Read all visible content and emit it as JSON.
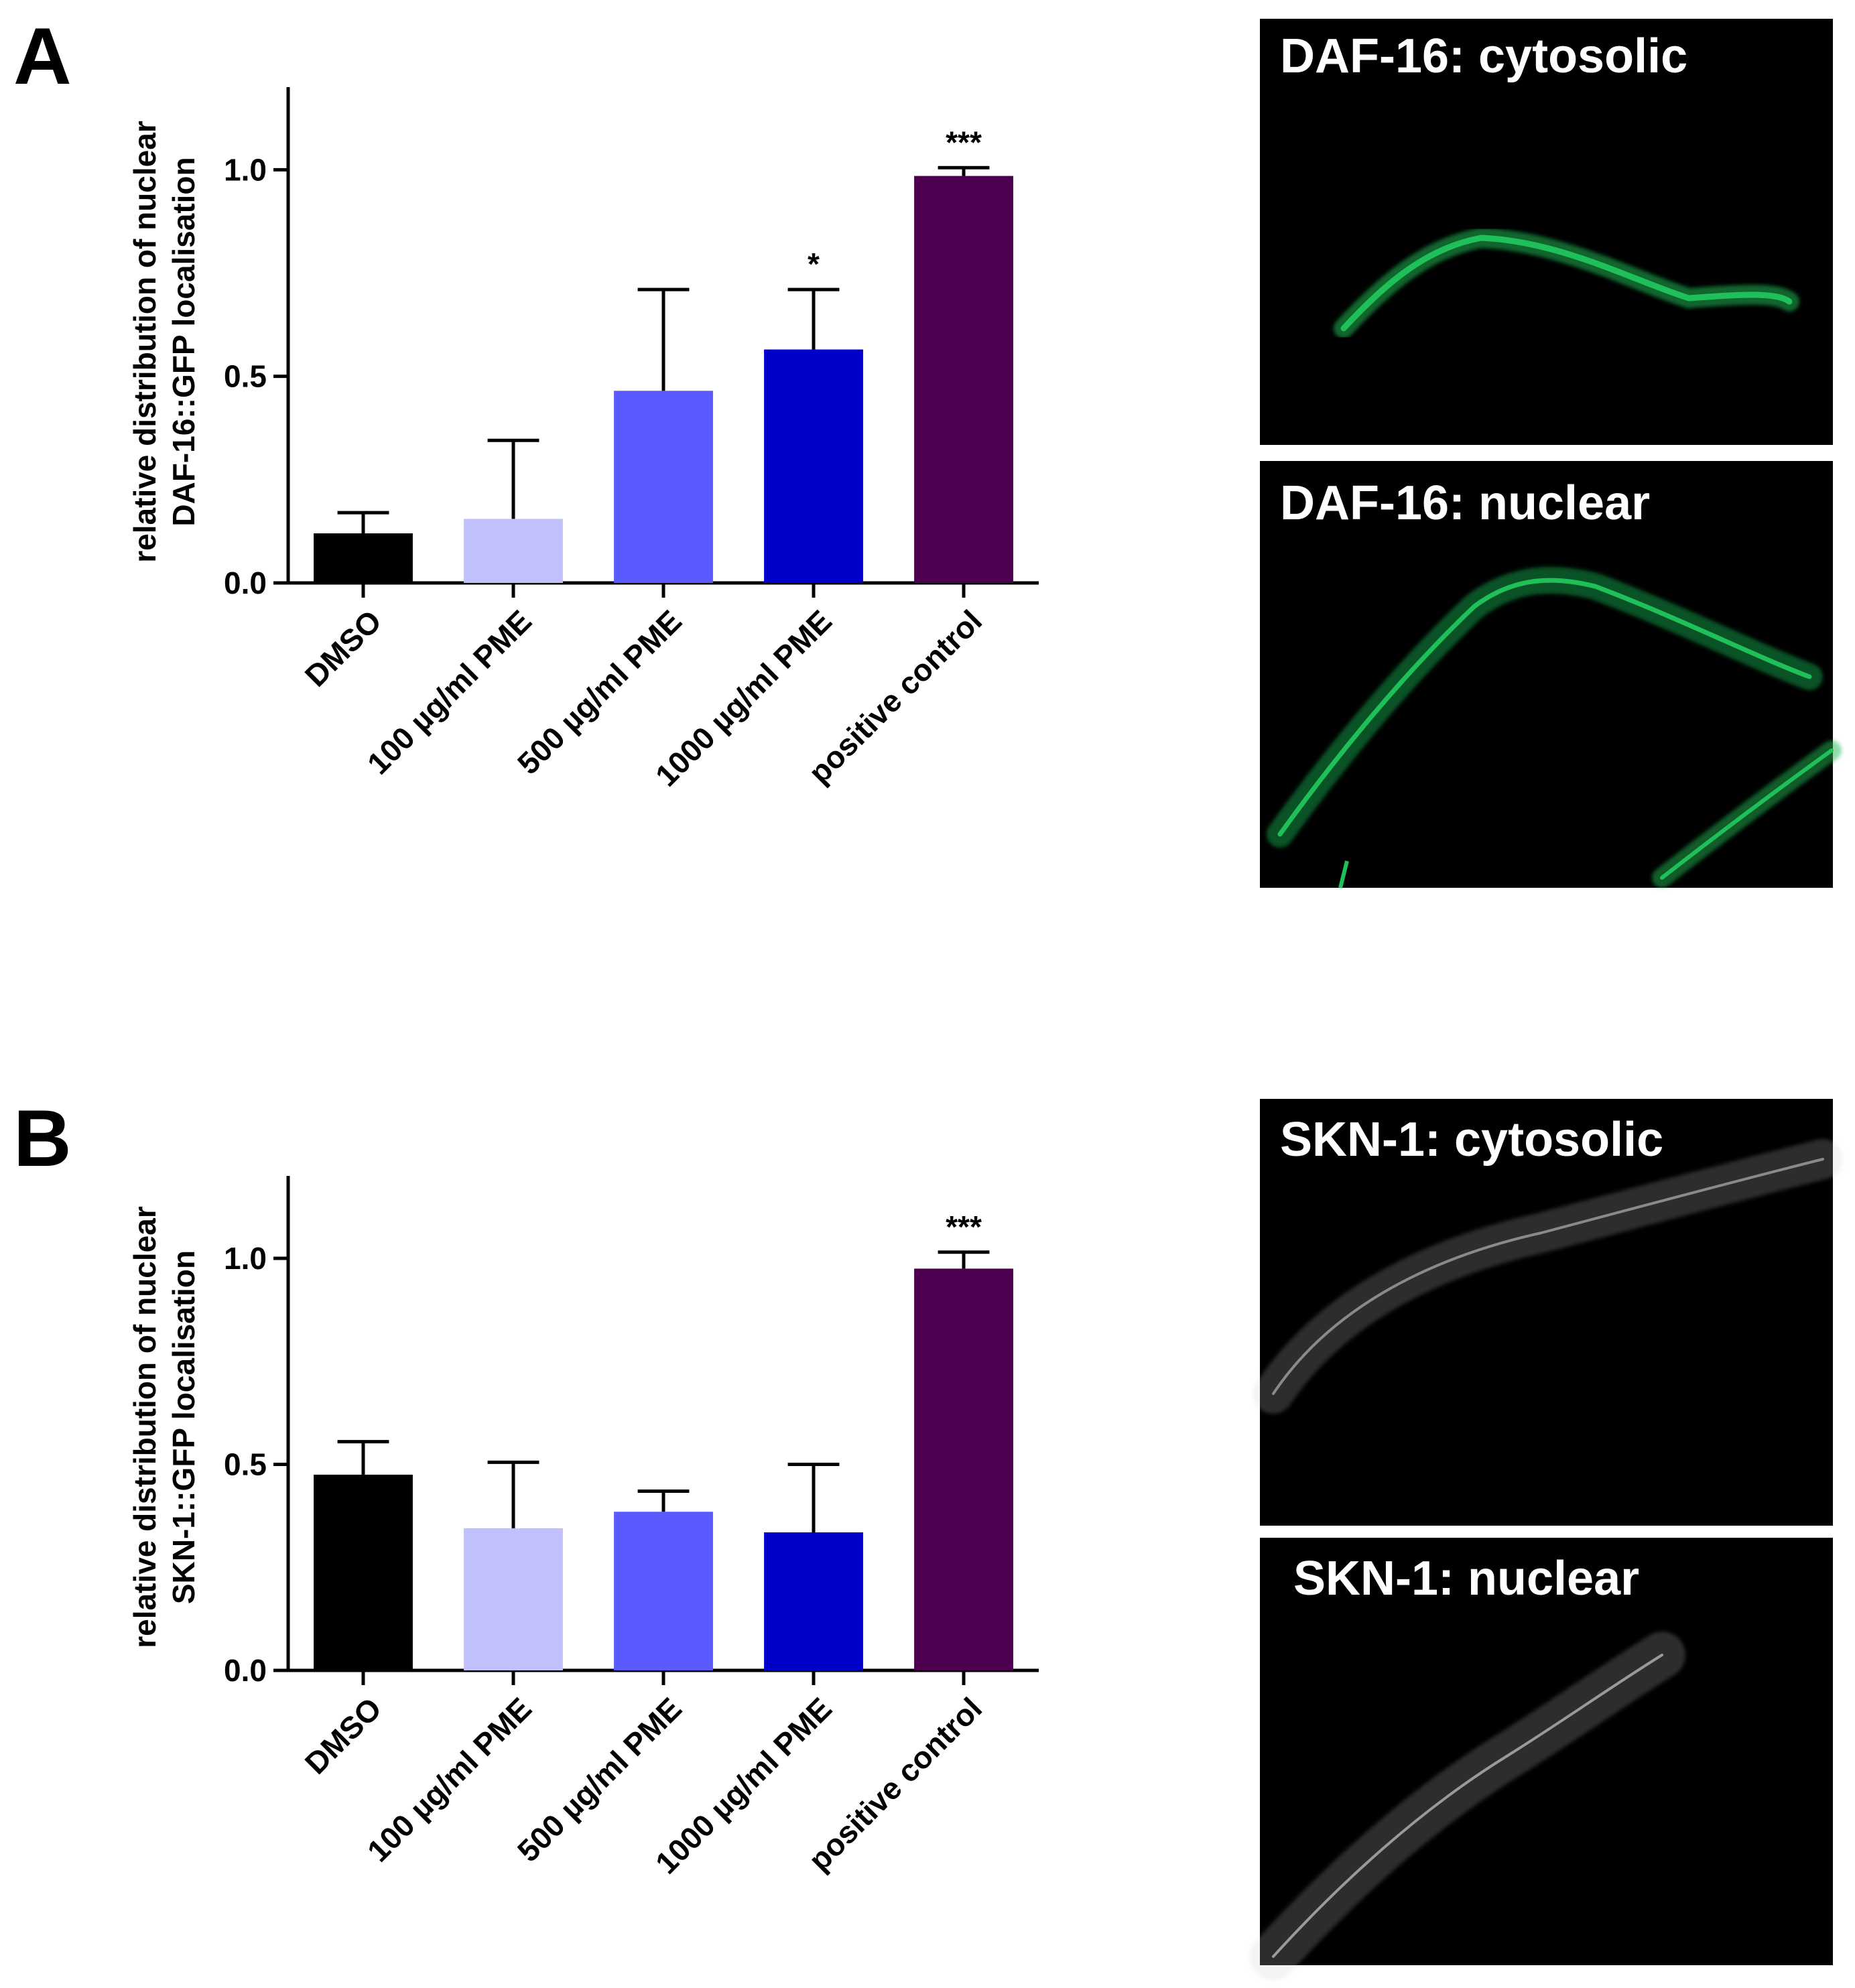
{
  "panels": {
    "a": {
      "letter": "A"
    },
    "b": {
      "letter": "B"
    }
  },
  "images": {
    "a_top": {
      "title": "DAF-16: cytosolic",
      "signal_color": "#1db954"
    },
    "a_bottom": {
      "title": "DAF-16: nuclear",
      "signal_color": "#1db954"
    },
    "b_top": {
      "title": "SKN-1: cytosolic",
      "signal_color": "#cfcfcf"
    },
    "b_bottom": {
      "title": "SKN-1: nuclear",
      "signal_color": "#cfcfcf"
    }
  },
  "chart_data": [
    {
      "type": "bar",
      "panel": "A",
      "title": "",
      "ylabel_lines": [
        "relative distribution of nuclear",
        "DAF-16::GFP localisation"
      ],
      "xlabel": "",
      "ylim": [
        0,
        1.2
      ],
      "yticks": [
        "0.0",
        "0.5",
        "1.0"
      ],
      "categories": [
        "DMSO",
        "100 µg/ml PME",
        "500 µg/ml PME",
        "1000 µg/ml PME",
        "positive control"
      ],
      "values": [
        0.12,
        0.155,
        0.465,
        0.565,
        0.985
      ],
      "error_upper": [
        0.17,
        0.345,
        0.71,
        0.71,
        1.005
      ],
      "significance": [
        "",
        "",
        "",
        "*",
        "***"
      ],
      "colors": [
        "#000000",
        "#c0c0fc",
        "#5a5aff",
        "#0000c8",
        "#4e0050"
      ],
      "grid": false,
      "legend": "none"
    },
    {
      "type": "bar",
      "panel": "B",
      "title": "",
      "ylabel_lines": [
        "relative distribution of nuclear",
        "SKN-1::GFP localisation"
      ],
      "xlabel": "",
      "ylim": [
        0,
        1.2
      ],
      "yticks": [
        "0.0",
        "0.5",
        "1.0"
      ],
      "categories": [
        "DMSO",
        "100 µg/ml PME",
        "500 µg/ml PME",
        "1000 µg/ml PME",
        "positive control"
      ],
      "values": [
        0.475,
        0.345,
        0.385,
        0.335,
        0.975
      ],
      "error_upper": [
        0.555,
        0.505,
        0.435,
        0.5,
        1.015
      ],
      "significance": [
        "",
        "",
        "",
        "",
        "***"
      ],
      "colors": [
        "#000000",
        "#c0c0fc",
        "#5a5aff",
        "#0000c8",
        "#4e0050"
      ],
      "grid": false,
      "legend": "none"
    }
  ]
}
